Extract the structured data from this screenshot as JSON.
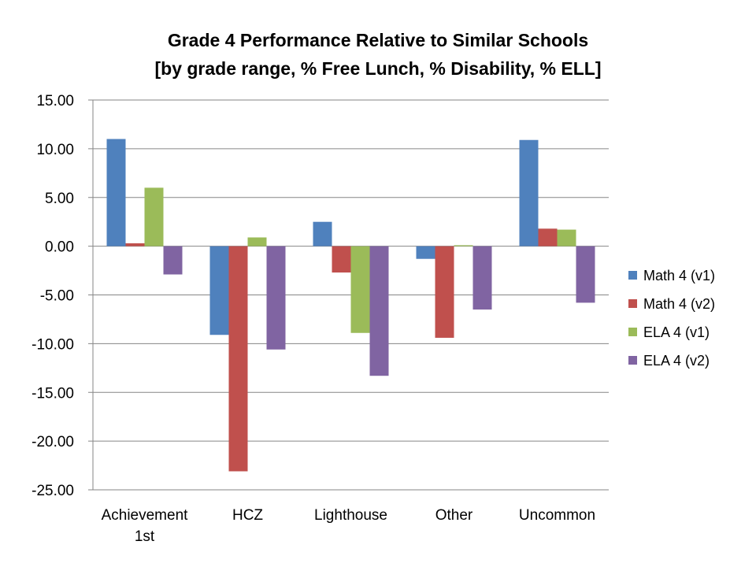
{
  "chart_data": {
    "type": "bar",
    "title": [
      "Grade 4 Performance Relative to Similar Schools",
      "[by grade range, % Free Lunch, % Disability, % ELL]"
    ],
    "xlabel": "",
    "ylabel": "",
    "categories": [
      [
        "Achievement",
        "1st"
      ],
      [
        "HCZ"
      ],
      [
        "Lighthouse"
      ],
      [
        "Other"
      ],
      [
        "Uncommon"
      ]
    ],
    "ylim": [
      -25,
      15
    ],
    "yticks": [
      15,
      10,
      5,
      0,
      -5,
      -10,
      -15,
      -20,
      -25
    ],
    "ytick_labels": [
      "15.00",
      "10.00",
      "5.00",
      "0.00",
      "-5.00",
      "-10.00",
      "-15.00",
      "-20.00",
      "-25.00"
    ],
    "grid": true,
    "legend_position": "right",
    "series": [
      {
        "name": "Math 4 (v1)",
        "color": "#4F81BD",
        "values": [
          11.0,
          -9.1,
          2.5,
          -1.3,
          10.9
        ]
      },
      {
        "name": "Math 4 (v2)",
        "color": "#C0504D",
        "values": [
          0.3,
          -23.1,
          -2.7,
          -9.4,
          1.8
        ]
      },
      {
        "name": "ELA 4 (v1)",
        "color": "#9BBB59",
        "values": [
          6.0,
          0.9,
          -8.9,
          0.1,
          1.7
        ]
      },
      {
        "name": "ELA 4 (v2)",
        "color": "#8064A2",
        "values": [
          -2.9,
          -10.6,
          -13.3,
          -6.5,
          -5.8
        ]
      }
    ]
  }
}
